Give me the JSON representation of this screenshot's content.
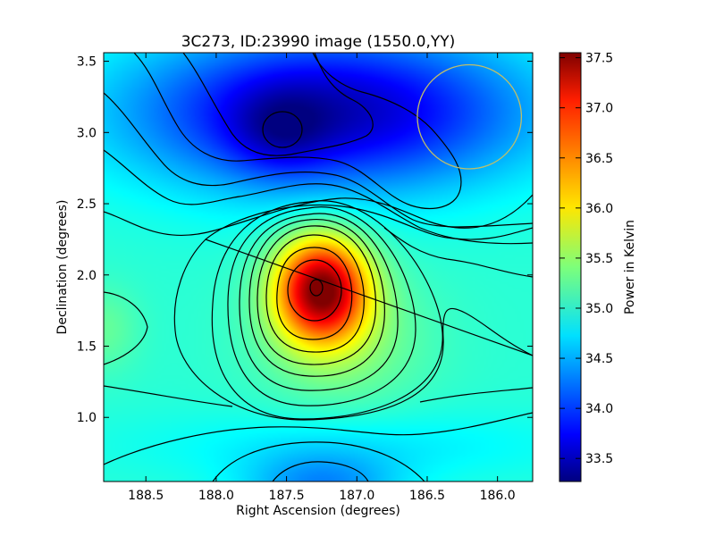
{
  "chart_data": {
    "type": "heatmap",
    "title": "3C273, ID:23990 image (1550.0,YY)",
    "xlabel": "Right Ascension (degrees)",
    "ylabel": "Declination (degrees)",
    "colorbar_label": "Power in Kelvin",
    "colormap": "jet",
    "xlim": [
      188.8,
      185.75
    ],
    "ylim": [
      0.55,
      3.56
    ],
    "x_ticks": [
      188.5,
      188.0,
      187.5,
      187.0,
      186.5,
      186.0
    ],
    "x_tick_labels": [
      "188.5",
      "188.0",
      "187.5",
      "187.0",
      "186.5",
      "186.0"
    ],
    "y_ticks": [
      1.0,
      1.5,
      2.0,
      2.5,
      3.0,
      3.5
    ],
    "y_tick_labels": [
      "1.0",
      "1.5",
      "2.0",
      "2.5",
      "3.0",
      "3.5"
    ],
    "colorbar_range": [
      33.27,
      37.55
    ],
    "colorbar_ticks": [
      33.5,
      34.0,
      34.5,
      35.0,
      35.5,
      36.0,
      36.5,
      37.0,
      37.5
    ],
    "colorbar_tick_labels": [
      "33.5",
      "34.0",
      "34.5",
      "35.0",
      "35.5",
      "36.0",
      "36.5",
      "37.0",
      "37.5"
    ],
    "peak": {
      "ra": 187.25,
      "dec": 1.9,
      "value": 37.5
    },
    "minimum": {
      "ra": 187.55,
      "dec": 3.0,
      "value": 33.3
    },
    "beam_circle": {
      "ra": 186.2,
      "dec": 3.11,
      "radius_deg": 0.37,
      "color": "#bfbf6a"
    },
    "grid": false,
    "contours": true
  }
}
